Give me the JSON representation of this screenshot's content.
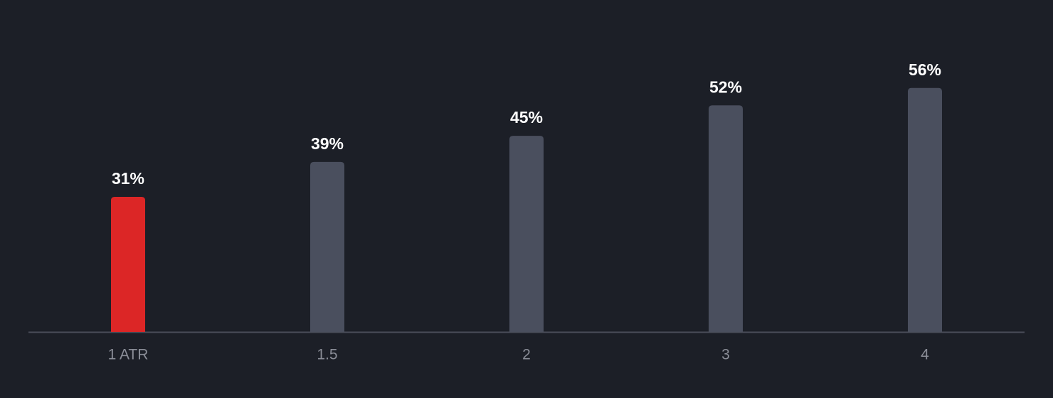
{
  "chart_data": {
    "type": "bar",
    "categories": [
      "1 ATR",
      "1.5",
      "2",
      "3",
      "4"
    ],
    "values": [
      31,
      39,
      45,
      52,
      56
    ],
    "value_labels": [
      "31%",
      "39%",
      "45%",
      "52%",
      "56%"
    ],
    "colors": [
      "#dc2626",
      "#4a4f5e",
      "#4a4f5e",
      "#4a4f5e",
      "#4a4f5e"
    ]
  }
}
